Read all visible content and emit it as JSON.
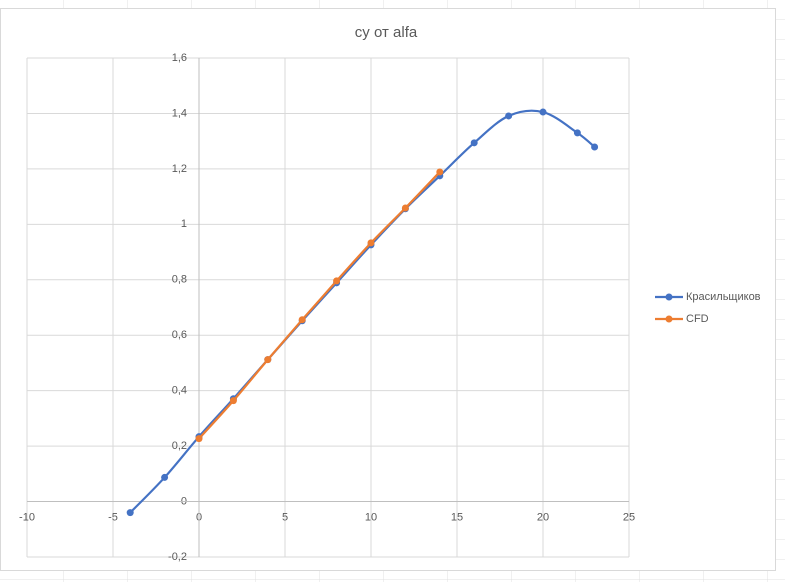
{
  "chart_data": {
    "type": "scatter",
    "title": "cy от alfa",
    "series": [
      {
        "name": "Красильщиков",
        "color": "#4472c4",
        "x": [
          -4,
          -2,
          0,
          2,
          4,
          6,
          8,
          10,
          12,
          14,
          16,
          18,
          20,
          22,
          23
        ],
        "values": [
          -0.04,
          0.087,
          0.234,
          0.371,
          0.512,
          0.652,
          0.789,
          0.926,
          1.056,
          1.175,
          1.294,
          1.391,
          1.405,
          1.33,
          1.279
        ]
      },
      {
        "name": "CFD",
        "color": "#ed7d31",
        "x": [
          0,
          2,
          4,
          6,
          8,
          10,
          12,
          14
        ],
        "values": [
          0.227,
          0.364,
          0.512,
          0.656,
          0.796,
          0.933,
          1.059,
          1.189
        ]
      }
    ],
    "xlim": [
      -10,
      25
    ],
    "xticks": [
      -10,
      -5,
      0,
      5,
      10,
      15,
      20,
      25
    ],
    "ylim": [
      -0.2,
      1.6
    ],
    "yticks": [
      {
        "value": -0.2,
        "label": "-0,2"
      },
      0,
      {
        "value": 0.2,
        "label": "0,2"
      },
      {
        "value": 0.4,
        "label": "0,4"
      },
      {
        "value": 0.6,
        "label": "0,6"
      },
      {
        "value": 0.8,
        "label": "0,8"
      },
      1,
      {
        "value": 1.2,
        "label": "1,2"
      },
      {
        "value": 1.4,
        "label": "1,4"
      },
      {
        "value": 1.6,
        "label": "1,6"
      }
    ],
    "grid": true,
    "smooth": true,
    "legend": "right"
  }
}
